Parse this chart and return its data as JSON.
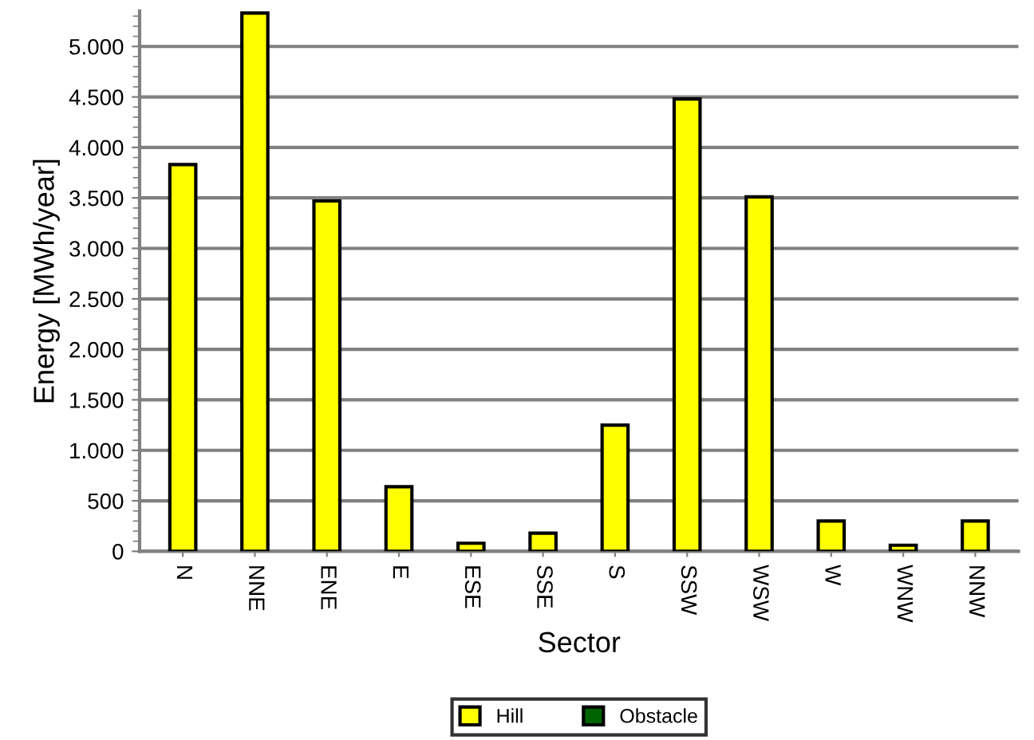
{
  "chart_data": {
    "type": "bar",
    "stacked": true,
    "xlabel": "Sector",
    "ylabel": "Energy [MWh/year]",
    "categories": [
      "N",
      "NNE",
      "ENE",
      "E",
      "ESE",
      "SSE",
      "S",
      "SSW",
      "WSW",
      "W",
      "WNW",
      "NNW"
    ],
    "series": [
      {
        "name": "Hill",
        "color": "#ffff00",
        "values": [
          3830,
          5330,
          3470,
          640,
          80,
          180,
          1250,
          4480,
          3510,
          300,
          60,
          300
        ]
      },
      {
        "name": "Obstacle",
        "color": "#006400",
        "values": [
          0,
          0,
          0,
          0,
          0,
          0,
          0,
          0,
          0,
          0,
          0,
          0
        ]
      }
    ],
    "ylim": [
      0,
      5350
    ],
    "yticks": [
      0,
      500,
      {
        "value": 1000,
        "label": "1.000"
      },
      {
        "value": 1500,
        "label": "1.500"
      },
      {
        "value": 2000,
        "label": "2.000"
      },
      {
        "value": 2500,
        "label": "2.500"
      },
      {
        "value": 3000,
        "label": "3.000"
      },
      {
        "value": 3500,
        "label": "3.500"
      },
      {
        "value": 4000,
        "label": "4.000"
      },
      {
        "value": 4500,
        "label": "4.500"
      },
      {
        "value": 5000,
        "label": "5.000"
      }
    ],
    "grid": "y",
    "legend": "bottom"
  }
}
